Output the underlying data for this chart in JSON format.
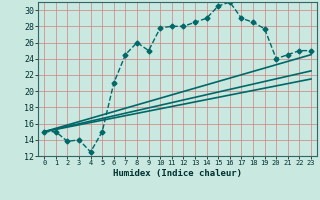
{
  "xlabel": "Humidex (Indice chaleur)",
  "background_color": "#c8e8e0",
  "grid_color": "#d08080",
  "line_color": "#006868",
  "xlim": [
    -0.5,
    23.5
  ],
  "ylim": [
    12,
    31
  ],
  "xticks": [
    0,
    1,
    2,
    3,
    4,
    5,
    6,
    7,
    8,
    9,
    10,
    11,
    12,
    13,
    14,
    15,
    16,
    17,
    18,
    19,
    20,
    21,
    22,
    23
  ],
  "yticks": [
    12,
    14,
    16,
    18,
    20,
    22,
    24,
    26,
    28,
    30
  ],
  "series": [
    {
      "x": [
        0,
        1,
        2,
        3,
        4,
        5,
        6,
        7,
        8,
        9,
        10,
        11,
        12,
        13,
        14,
        15,
        16,
        17,
        18,
        19,
        20,
        21,
        22,
        23
      ],
      "y": [
        15,
        15,
        13.8,
        14,
        12.5,
        15,
        21,
        24.5,
        26,
        25,
        27.8,
        28,
        28,
        28.5,
        29,
        30.5,
        31,
        29,
        28.5,
        27.7,
        24,
        24.5,
        25,
        25
      ],
      "marker": "D",
      "markersize": 2.5,
      "linewidth": 1.0,
      "linestyle": "--"
    },
    {
      "x": [
        0,
        23
      ],
      "y": [
        15,
        24.5
      ],
      "marker": null,
      "linewidth": 1.2,
      "linestyle": "-"
    },
    {
      "x": [
        0,
        23
      ],
      "y": [
        15,
        22.5
      ],
      "marker": null,
      "linewidth": 1.2,
      "linestyle": "-"
    },
    {
      "x": [
        0,
        23
      ],
      "y": [
        15,
        21.5
      ],
      "marker": null,
      "linewidth": 1.2,
      "linestyle": "-"
    }
  ]
}
